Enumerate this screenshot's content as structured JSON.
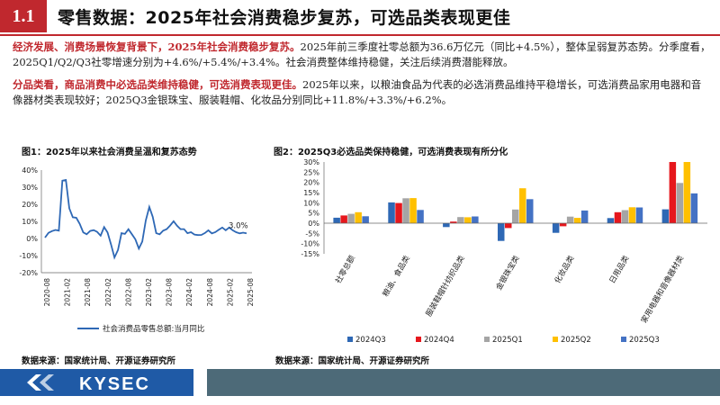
{
  "header": {
    "section_number": "1.1",
    "title": "零售数据：2025年社会消费稳步复苏，可选品类表现更佳"
  },
  "paragraph1": {
    "highlight": "经济发展、消费场景恢复背景下，2025年社会消费稳步复苏。",
    "text": "2025年前三季度社零总额为36.6万亿元（同比+4.5%），整体呈弱复苏态势。分季度看，2025Q1/Q2/Q3社零增速分别为+4.6%/+5.4%/+3.4%。社会消费整体维持稳健，关注后续消费潜能释放。"
  },
  "paragraph2": {
    "highlight": "分品类看，商品消费中必选品类维持稳健，可选消费表现更佳。",
    "text": "2025年以来，以粮油食品为代表的必选消费品维持平稳增长，可选消费品家用电器和音像器材类表现较好；2025Q3金银珠宝、服装鞋帽、化妆品分别同比+11.8%/+3.3%/+6.2%。"
  },
  "chart_data": [
    {
      "type": "line",
      "title": "图1：2025年以来社会消费呈温和复苏态势",
      "y_ticks": [
        "40%",
        "30%",
        "20%",
        "10%",
        "0%",
        "-10%",
        "-20%"
      ],
      "ylim": [
        -20,
        40
      ],
      "x_ticks": [
        "2020-08",
        "2021-02",
        "2021-08",
        "2022-02",
        "2022-08",
        "2023-02",
        "2023-08",
        "2024-02",
        "2024-08",
        "2025-02",
        "2025-08"
      ],
      "annotation": "3.0%",
      "legend": "社会消费品零售总额:当月同比",
      "color": "#2e68b5",
      "series": {
        "name": "社会消费品零售总额:当月同比",
        "values": [
          0.5,
          3.3,
          4.3,
          5.0,
          4.6,
          33.8,
          34.2,
          17.7,
          12.4,
          12.1,
          8.5,
          3.6,
          2.5,
          4.4,
          4.9,
          3.9,
          1.7,
          6.7,
          3.5,
          -3.5,
          -11.1,
          -6.7,
          3.1,
          2.7,
          5.4,
          2.5,
          -0.5,
          -5.9,
          -1.8,
          10.6,
          18.4,
          12.7,
          3.1,
          2.5,
          4.6,
          5.5,
          7.6,
          10.1,
          7.4,
          5.5,
          5.5,
          3.1,
          3.7,
          2.3,
          2.0,
          2.1,
          3.2,
          4.8,
          3.0,
          3.7,
          5.1,
          6.4,
          4.8,
          6.4,
          4.8,
          3.7,
          3.0,
          3.4,
          3.0
        ]
      }
    },
    {
      "type": "bar",
      "title": "图2：2025Q3必选品类保持稳健，可选消费表现有所分化",
      "y_ticks": [
        "30%",
        "25%",
        "20%",
        "15%",
        "10%",
        "5%",
        "0%",
        "-5%",
        "-10%",
        "-15%"
      ],
      "ylim": [
        -15,
        30
      ],
      "categories": [
        "社零总额",
        "粮油、食品类",
        "服装鞋帽针纺织品类",
        "金银珠宝类",
        "化妆品类",
        "日用品类",
        "家用电器和音像器材类"
      ],
      "series": [
        {
          "name": "2024Q3",
          "color": "#2e68b5",
          "values": [
            2.7,
            10.2,
            -1.9,
            -8.7,
            -4.7,
            2.5,
            6.8
          ]
        },
        {
          "name": "2024Q4",
          "color": "#e6171d",
          "values": [
            3.8,
            9.9,
            0.8,
            -2.4,
            -1.5,
            5.4,
            30.0
          ]
        },
        {
          "name": "2025Q1",
          "color": "#a5a5a5",
          "values": [
            4.6,
            12.2,
            3.0,
            6.7,
            3.2,
            6.4,
            19.7
          ]
        },
        {
          "name": "2025Q2",
          "color": "#ffc000",
          "values": [
            5.4,
            12.3,
            2.9,
            17.1,
            2.6,
            7.8,
            30.0
          ]
        },
        {
          "name": "2025Q3",
          "color": "#4472c4",
          "values": [
            3.4,
            6.5,
            3.3,
            11.8,
            6.2,
            7.7,
            14.6
          ]
        }
      ]
    }
  ],
  "sources": {
    "left": "数据来源：国家统计局、开源证券研究所",
    "right": "数据来源：国家统计局、开源证券研究所"
  },
  "footer": {
    "brand": "KYSEC"
  },
  "colors": {
    "accent_red": "#c0282e",
    "brand_blue": "#1f5aa6",
    "footer_gray": "#4d6a78"
  }
}
